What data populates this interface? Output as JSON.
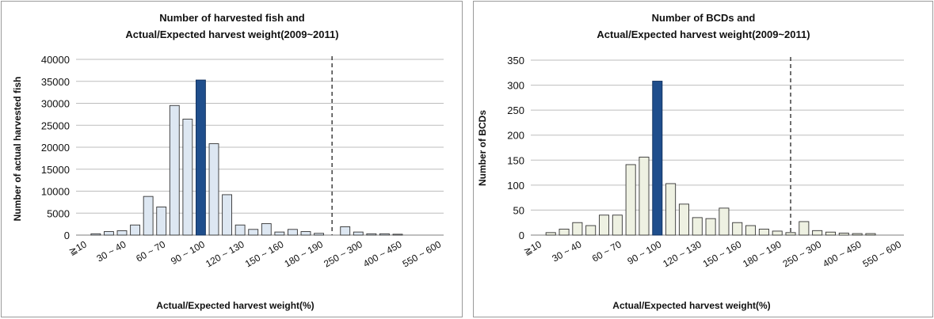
{
  "chart_data": [
    {
      "type": "bar",
      "title_lines": [
        "Number of harvested fish  and",
        "Actual/Expected harvest weight(2009~2011)"
      ],
      "xlabel": "Actual/Expected harvest weight(%)",
      "ylabel": "Number of actual harvested fish",
      "ylim": [
        0,
        40000
      ],
      "yticks": [
        "0",
        "5000",
        "10000",
        "15000",
        "20000",
        "25000",
        "30000",
        "35000",
        "40000"
      ],
      "xtick_labels": [
        "≧10",
        "30 ~ 40",
        "60 ~ 70",
        "90 ~ 100",
        "120 ~ 130",
        "150 ~ 160",
        "180 ~ 190",
        "250 ~ 300",
        "400 ~ 450",
        "550 ~ 600"
      ],
      "values": [
        0,
        300,
        800,
        1000,
        2300,
        8800,
        6400,
        29500,
        26400,
        35300,
        20800,
        9200,
        2300,
        1300,
        2600,
        700,
        1300,
        800,
        400,
        0,
        1900,
        700,
        300,
        300,
        200,
        0,
        0,
        0
      ],
      "highlight_index": 9,
      "bar_color": "#dde7f2",
      "highlight_color": "#1f4e8c",
      "grid": true
    },
    {
      "type": "bar",
      "title_lines": [
        "Number of BCDs  and",
        "Actual/Expected harvest weight(2009~2011)"
      ],
      "xlabel": "Actual/Expected harvest weight(%)",
      "ylabel": "Number of BCDs",
      "ylim": [
        0,
        350
      ],
      "yticks": [
        "0",
        "50",
        "100",
        "150",
        "200",
        "250",
        "300",
        "350"
      ],
      "xtick_labels": [
        "≧10",
        "30 ~ 40",
        "60 ~ 70",
        "90 ~ 100",
        "120 ~ 130",
        "150 ~ 160",
        "180 ~ 190",
        "250 ~ 300",
        "400 ~ 450",
        "550 ~ 600"
      ],
      "values": [
        0,
        5,
        12,
        25,
        19,
        40,
        40,
        141,
        156,
        308,
        103,
        62,
        35,
        33,
        54,
        25,
        19,
        12,
        8,
        5,
        27,
        9,
        6,
        4,
        3,
        3,
        0,
        0
      ],
      "highlight_index": 9,
      "bar_color": "#eef1e2",
      "highlight_color": "#1f4e8c",
      "grid": true
    }
  ]
}
